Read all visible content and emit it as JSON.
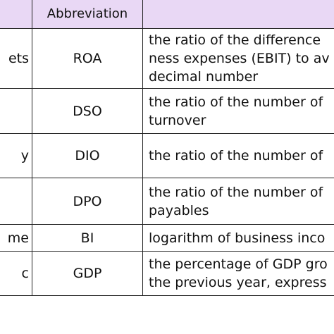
{
  "table": {
    "headers": {
      "variable": "",
      "abbreviation": "Abbreviation",
      "definition": ""
    },
    "rows": [
      {
        "variable": "ets",
        "abbreviation": "ROA",
        "definition": [
          "the ratio of the difference",
          "ness expenses (EBIT) to av",
          "decimal number"
        ]
      },
      {
        "variable": "",
        "abbreviation": "DSO",
        "definition": [
          "the ratio of the number of",
          "turnover"
        ]
      },
      {
        "variable": "y",
        "abbreviation": "DIO",
        "definition": [
          "the ratio of the number of"
        ]
      },
      {
        "variable": "",
        "abbreviation": "DPO",
        "definition": [
          "the ratio of the number of",
          "payables"
        ]
      },
      {
        "variable": "me",
        "abbreviation": "BI",
        "definition": [
          "logarithm of business inco"
        ]
      },
      {
        "variable": "c",
        "abbreviation": "GDP",
        "definition": [
          "the percentage of GDP gro",
          "the previous year, express"
        ]
      }
    ]
  }
}
